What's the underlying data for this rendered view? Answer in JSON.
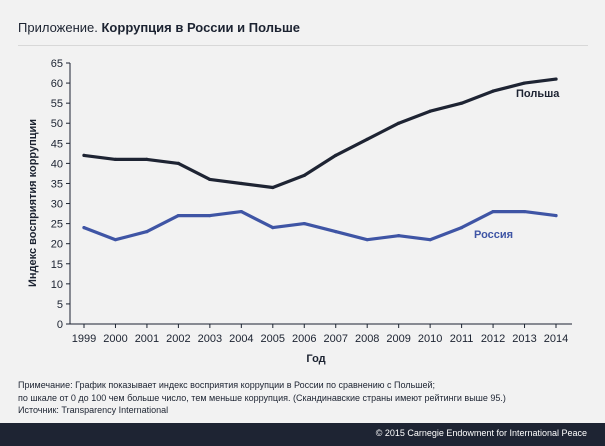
{
  "header": {
    "prefix": "Приложение.",
    "title": "Коррупция в России и Польше"
  },
  "notes": {
    "line1": "Примечание: График показывает индекс восприятия коррупции в России по сравнению с Польшей;",
    "line2": "по шкале от 0 до 100 чем больше число, тем меньше коррупция. (Скандинавские страны имеют рейтинги выше 95.)",
    "source": "Источник: Transparency International"
  },
  "footer": {
    "credit": "© 2015 Carnegie Endowment for International Peace"
  },
  "chart_data": {
    "type": "line",
    "title": "Коррупция в России и Польше",
    "xlabel": "Год",
    "ylabel": "Индекс восприятия коррупции",
    "categories": [
      "1999",
      "2000",
      "2001",
      "2002",
      "2003",
      "2004",
      "2005",
      "2006",
      "2007",
      "2008",
      "2009",
      "2010",
      "2011",
      "2012",
      "2013",
      "2014"
    ],
    "ylim": [
      0,
      65
    ],
    "yticks": [
      0,
      5,
      10,
      15,
      20,
      25,
      30,
      35,
      40,
      45,
      50,
      55,
      60,
      65
    ],
    "grid": false,
    "series": [
      {
        "name": "Польша",
        "color": "#1e2433",
        "values": [
          42,
          41,
          41,
          40,
          36,
          35,
          34,
          37,
          42,
          46,
          50,
          53,
          55,
          58,
          60,
          61
        ]
      },
      {
        "name": "Россия",
        "color": "#3f55a5",
        "values": [
          24,
          21,
          23,
          27,
          27,
          28,
          24,
          25,
          23,
          21,
          22,
          21,
          24,
          28,
          28,
          27
        ]
      }
    ]
  }
}
